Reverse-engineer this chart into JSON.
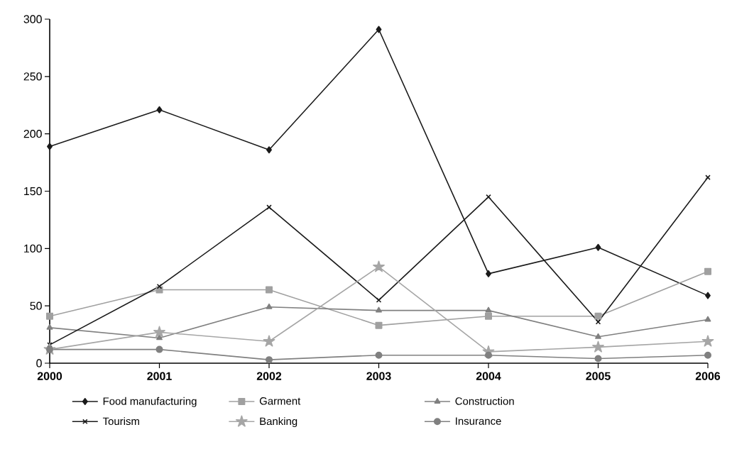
{
  "chart_data": {
    "type": "line",
    "categories": [
      "2000",
      "2001",
      "2002",
      "2003",
      "2004",
      "2005",
      "2006"
    ],
    "ylim": [
      0,
      300
    ],
    "yticks": [
      0,
      50,
      100,
      150,
      200,
      250,
      300
    ],
    "grid": false,
    "legend": "bottom",
    "line_style": "solid",
    "series": [
      {
        "name": "Food manufacturing",
        "color": "#1a1a1a",
        "marker": "diamond",
        "values": [
          189,
          221,
          186,
          291,
          78,
          101,
          59
        ]
      },
      {
        "name": "Garment",
        "color": "#a0a0a0",
        "marker": "square",
        "values": [
          41,
          64,
          64,
          33,
          41,
          41,
          80
        ]
      },
      {
        "name": "Construction",
        "color": "#808080",
        "marker": "triangle",
        "values": [
          31,
          22,
          49,
          46,
          46,
          23,
          38
        ]
      },
      {
        "name": "Tourism",
        "color": "#1a1a1a",
        "marker": "cross",
        "values": [
          16,
          67,
          136,
          55,
          145,
          36,
          162
        ]
      },
      {
        "name": "Banking",
        "color": "#a6a6a6",
        "marker": "star",
        "values": [
          12,
          27,
          19,
          84,
          10,
          14,
          19
        ]
      },
      {
        "name": "Insurance",
        "color": "#808080",
        "marker": "circle",
        "values": [
          12,
          12,
          3,
          7,
          7,
          4,
          7
        ]
      }
    ]
  }
}
